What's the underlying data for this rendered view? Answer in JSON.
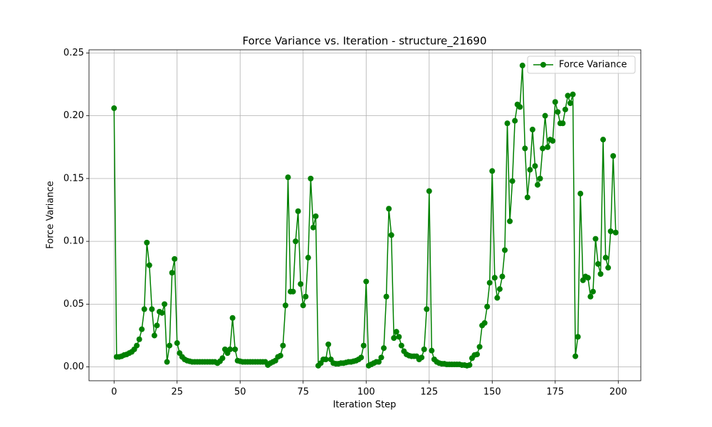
{
  "chart_data": {
    "type": "line",
    "title": "Force Variance vs. Iteration - structure_21690",
    "x_label": "Iteration Step",
    "y_label": "Force Variance",
    "x": [
      0,
      1,
      2,
      3,
      4,
      5,
      6,
      7,
      8,
      9,
      10,
      11,
      12,
      13,
      14,
      15,
      16,
      17,
      18,
      19,
      20,
      21,
      22,
      23,
      24,
      25,
      26,
      27,
      28,
      29,
      30,
      31,
      32,
      33,
      34,
      35,
      36,
      37,
      38,
      39,
      40,
      41,
      42,
      43,
      44,
      45,
      46,
      47,
      48,
      49,
      50,
      51,
      52,
      53,
      54,
      55,
      56,
      57,
      58,
      59,
      60,
      61,
      62,
      63,
      64,
      65,
      66,
      67,
      68,
      69,
      70,
      71,
      72,
      73,
      74,
      75,
      76,
      77,
      78,
      79,
      80,
      81,
      82,
      83,
      84,
      85,
      86,
      87,
      88,
      89,
      90,
      91,
      92,
      93,
      94,
      95,
      96,
      97,
      98,
      99,
      100,
      101,
      102,
      103,
      104,
      105,
      106,
      107,
      108,
      109,
      110,
      111,
      112,
      113,
      114,
      115,
      116,
      117,
      118,
      119,
      120,
      121,
      122,
      123,
      124,
      125,
      126,
      127,
      128,
      129,
      130,
      131,
      132,
      133,
      134,
      135,
      136,
      137,
      138,
      139,
      140,
      141,
      142,
      143,
      144,
      145,
      146,
      147,
      148,
      149,
      150,
      151,
      152,
      153,
      154,
      155,
      156,
      157,
      158,
      159,
      160,
      161,
      162,
      163,
      164,
      165,
      166,
      167,
      168,
      169,
      170,
      171,
      172,
      173,
      174,
      175,
      176,
      177,
      178,
      179,
      180,
      181,
      182,
      183,
      184,
      185,
      186,
      187,
      188,
      189,
      190,
      191,
      192,
      193,
      194,
      195,
      196,
      197,
      198,
      199
    ],
    "series": [
      {
        "name": "Force Variance",
        "color": "#008000",
        "values": [
          0.206,
          0.008,
          0.008,
          0.0085,
          0.0095,
          0.01,
          0.011,
          0.012,
          0.014,
          0.017,
          0.022,
          0.03,
          0.046,
          0.099,
          0.081,
          0.046,
          0.025,
          0.033,
          0.044,
          0.043,
          0.05,
          0.004,
          0.017,
          0.075,
          0.086,
          0.019,
          0.011,
          0.008,
          0.006,
          0.005,
          0.0045,
          0.004,
          0.004,
          0.004,
          0.004,
          0.004,
          0.004,
          0.004,
          0.004,
          0.004,
          0.004,
          0.003,
          0.0045,
          0.007,
          0.014,
          0.011,
          0.014,
          0.039,
          0.014,
          0.005,
          0.0045,
          0.004,
          0.004,
          0.004,
          0.004,
          0.004,
          0.004,
          0.004,
          0.004,
          0.004,
          0.004,
          0.0015,
          0.003,
          0.004,
          0.005,
          0.008,
          0.009,
          0.017,
          0.049,
          0.151,
          0.06,
          0.06,
          0.1,
          0.124,
          0.066,
          0.049,
          0.056,
          0.087,
          0.15,
          0.111,
          0.12,
          0.001,
          0.003,
          0.006,
          0.006,
          0.018,
          0.006,
          0.003,
          0.0025,
          0.0025,
          0.003,
          0.003,
          0.0035,
          0.004,
          0.004,
          0.0045,
          0.005,
          0.006,
          0.0075,
          0.017,
          0.068,
          0.001,
          0.002,
          0.003,
          0.004,
          0.004,
          0.0075,
          0.015,
          0.056,
          0.126,
          0.105,
          0.023,
          0.028,
          0.024,
          0.017,
          0.0125,
          0.01,
          0.009,
          0.0085,
          0.0085,
          0.0085,
          0.006,
          0.0075,
          0.014,
          0.046,
          0.14,
          0.013,
          0.006,
          0.004,
          0.003,
          0.0025,
          0.0025,
          0.002,
          0.002,
          0.002,
          0.002,
          0.002,
          0.002,
          0.0015,
          0.0015,
          0.001,
          0.0015,
          0.007,
          0.0095,
          0.01,
          0.016,
          0.033,
          0.035,
          0.048,
          0.067,
          0.156,
          0.071,
          0.055,
          0.062,
          0.072,
          0.093,
          0.194,
          0.116,
          0.148,
          0.196,
          0.209,
          0.207,
          0.24,
          0.174,
          0.135,
          0.157,
          0.189,
          0.16,
          0.145,
          0.15,
          0.174,
          0.2,
          0.175,
          0.181,
          0.18,
          0.211,
          0.203,
          0.194,
          0.194,
          0.205,
          0.216,
          0.21,
          0.217,
          0.0085,
          0.024,
          0.138,
          0.069,
          0.072,
          0.071,
          0.056,
          0.06,
          0.102,
          0.082,
          0.074,
          0.181,
          0.087,
          0.079,
          0.108,
          0.168,
          0.107
        ]
      }
    ],
    "xlim": [
      -9.95,
      208.95
    ],
    "ylim": [
      -0.011,
      0.2525
    ],
    "xticks": [
      0,
      25,
      50,
      75,
      100,
      125,
      150,
      175,
      200
    ],
    "yticks": [
      {
        "value": 0,
        "label": "0.00"
      },
      {
        "value": 0.05,
        "label": "0.05"
      },
      {
        "value": 0.1,
        "label": "0.10"
      },
      {
        "value": 0.15,
        "label": "0.15"
      },
      {
        "value": 0.2,
        "label": "0.20"
      },
      {
        "value": 0.25,
        "label": "0.25"
      }
    ],
    "grid": true,
    "legend": "upper right"
  }
}
